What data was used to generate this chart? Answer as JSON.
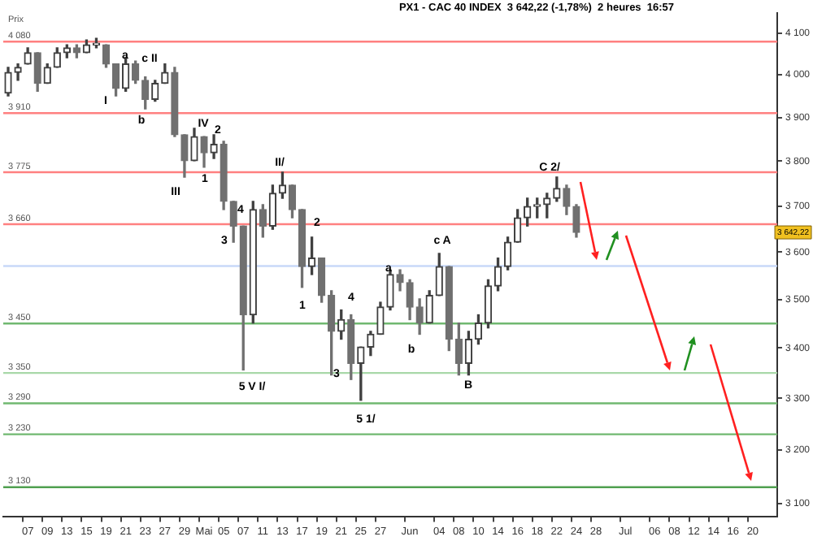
{
  "chart_data": {
    "type": "candlestick",
    "title": "PX1 - CAC 40 INDEX  3 642,22 (-1,78%)  2 heures  16:57",
    "ylabel": "Prix",
    "colors": [
      "#404040",
      "#404040",
      "#404040",
      "#707070",
      "#404040",
      "#404040",
      "#404040",
      "#707070",
      "#404040",
      "#404040",
      "#707070",
      "#707070",
      "#404040",
      "#707070",
      "#707070",
      "#404040",
      "#404040",
      "#707070",
      "#707070",
      "#404040",
      "#707070",
      "#404040",
      "#707070",
      "#707070",
      "#707070",
      "#404040",
      "#707070",
      "#404040",
      "#404040",
      "#707070",
      "#707070",
      "#404040",
      "#707070",
      "#707070",
      "#404040",
      "#707070",
      "#404040",
      "#404040",
      "#404040",
      "#404040",
      "#707070",
      "#707070",
      "#707070",
      "#404040",
      "#404040",
      "#707070",
      "#707070",
      "#404040",
      "#404040",
      "#404040",
      "#404040",
      "#404040",
      "#404040",
      "#404040",
      "#404040",
      "#404040",
      "#404040",
      "#707070",
      "#707070",
      null,
      null,
      null,
      null,
      null,
      null,
      null,
      null,
      null,
      null,
      null,
      null,
      null,
      null,
      null,
      null,
      null,
      null,
      null,
      null
    ],
    "log": "y",
    "grid": false,
    "legend": false,
    "categories": [
      null,
      null,
      "07",
      null,
      "09",
      null,
      "13",
      null,
      "15",
      null,
      "19",
      null,
      "21",
      null,
      "23",
      null,
      "27",
      null,
      "29",
      null,
      "Mai",
      null,
      "05",
      null,
      "07",
      null,
      "11",
      null,
      "13",
      null,
      "17",
      null,
      "19",
      null,
      "21",
      null,
      "25",
      null,
      "27",
      null,
      null,
      "Jun",
      null,
      null,
      "04",
      null,
      "08",
      null,
      "10",
      null,
      "14",
      null,
      "16",
      null,
      "18",
      null,
      "22",
      null,
      "24",
      null,
      "28",
      null,
      null,
      "Jul",
      null,
      null,
      "06",
      null,
      "08",
      null,
      "12",
      null,
      "14",
      null,
      "16",
      null,
      "20",
      null,
      null
    ],
    "ohlc": [
      [
        3957,
        4018,
        3950,
        4006
      ],
      [
        4006,
        4026,
        3987,
        4018
      ],
      [
        4026,
        4065,
        4026,
        4053
      ],
      [
        4053,
        4053,
        3961,
        3980
      ],
      [
        3980,
        4026,
        3980,
        4018
      ],
      [
        4018,
        4065,
        4018,
        4053
      ],
      [
        4053,
        4072,
        4041,
        4065
      ],
      [
        4065,
        4072,
        4041,
        4053
      ],
      [
        4053,
        4084,
        4053,
        4072
      ],
      [
        4072,
        4088,
        4065,
        4072
      ],
      [
        4072,
        4072,
        4018,
        4026
      ],
      [
        4026,
        4026,
        3950,
        3968
      ],
      [
        3968,
        4041,
        3961,
        4026
      ],
      [
        4026,
        4033,
        3980,
        3987
      ],
      [
        3987,
        3995,
        3920,
        3942
      ],
      [
        3942,
        3987,
        3938,
        3980
      ],
      [
        3980,
        4026,
        3980,
        4006
      ],
      [
        4006,
        4018,
        3856,
        3860
      ],
      [
        3860,
        3860,
        3764,
        3801
      ],
      [
        3801,
        3875,
        3801,
        3856
      ],
      [
        3856,
        3856,
        3786,
        3819
      ],
      [
        3819,
        3860,
        3806,
        3838
      ],
      [
        3838,
        3845,
        3692,
        3710
      ],
      [
        3710,
        3710,
        3621,
        3656
      ],
      [
        3656,
        3656,
        3356,
        3468
      ],
      [
        3468,
        3710,
        3451,
        3692
      ],
      [
        3692,
        3703,
        3632,
        3656
      ],
      [
        3656,
        3746,
        3649,
        3728
      ],
      [
        3728,
        3775,
        3717,
        3746
      ],
      [
        3746,
        3746,
        3674,
        3692
      ],
      [
        3692,
        3692,
        3525,
        3569
      ],
      [
        3569,
        3632,
        3552,
        3587
      ],
      [
        3587,
        3587,
        3494,
        3508
      ],
      [
        3508,
        3518,
        3346,
        3434
      ],
      [
        3434,
        3478,
        3418,
        3458
      ],
      [
        3458,
        3468,
        3337,
        3369
      ],
      [
        3369,
        3402,
        3296,
        3402
      ],
      [
        3402,
        3434,
        3385,
        3428
      ],
      [
        3428,
        3494,
        3428,
        3484
      ],
      [
        3484,
        3562,
        3478,
        3552
      ],
      [
        3552,
        3562,
        3518,
        3535
      ],
      [
        3535,
        3541,
        3458,
        3484
      ],
      [
        3484,
        3501,
        3428,
        3451
      ],
      [
        3451,
        3518,
        3451,
        3508
      ],
      [
        3508,
        3597,
        3508,
        3569
      ],
      [
        3569,
        3569,
        3395,
        3418
      ],
      [
        3418,
        3451,
        3346,
        3369
      ],
      [
        3369,
        3434,
        3346,
        3418
      ],
      [
        3418,
        3468,
        3408,
        3451
      ],
      [
        3451,
        3541,
        3441,
        3528
      ],
      [
        3528,
        3587,
        3518,
        3569
      ],
      [
        3569,
        3632,
        3562,
        3621
      ],
      [
        3621,
        3692,
        3621,
        3674
      ],
      [
        3674,
        3717,
        3656,
        3699
      ],
      [
        3699,
        3717,
        3674,
        3703
      ],
      [
        3703,
        3728,
        3674,
        3717
      ],
      [
        3717,
        3764,
        3710,
        3739
      ],
      [
        3739,
        3746,
        3681,
        3699
      ],
      [
        3699,
        3703,
        3632,
        3642.22
      ],
      null,
      null,
      null,
      null,
      null,
      null,
      null,
      null,
      null,
      null,
      null,
      null,
      null,
      null,
      null,
      null,
      null,
      null,
      null,
      null
    ],
    "ylim": [
      3075,
      4150
    ],
    "yticks": [
      {
        "value": 4100,
        "label": "4 100"
      },
      {
        "value": 4000,
        "label": "4 000"
      },
      {
        "value": 3900,
        "label": "3 900"
      },
      {
        "value": 3800,
        "label": "3 800"
      },
      {
        "value": 3700,
        "label": "3 700"
      },
      {
        "value": 3600,
        "label": "3 600"
      },
      {
        "value": 3500,
        "label": "3 500"
      },
      {
        "value": 3400,
        "label": "3 400"
      },
      {
        "value": 3300,
        "label": "3 300"
      },
      {
        "value": 3200,
        "label": "3 200"
      },
      {
        "value": 3100,
        "label": "3 100"
      }
    ],
    "ref_lines": [
      {
        "axis": "y",
        "value": 4080,
        "label": "4 080",
        "color": "#ff8080"
      },
      {
        "axis": "y",
        "value": 3910,
        "label": "3 910",
        "color": "#ff8080"
      },
      {
        "axis": "y",
        "value": 3775,
        "label": "3 775",
        "color": "#ff8080"
      },
      {
        "axis": "y",
        "value": 3660,
        "label": "3 660",
        "color": "#ff8080"
      },
      {
        "axis": "y",
        "value": 3570,
        "color": "#c8d8f8"
      },
      {
        "axis": "y",
        "value": 3450,
        "label": "3 450",
        "color": "#70b870"
      },
      {
        "axis": "y",
        "value": 3350,
        "label": "3 350",
        "color": "#a8d8a8"
      },
      {
        "axis": "y",
        "value": 3290,
        "label": "3 290",
        "color": "#70b870"
      },
      {
        "axis": "y",
        "value": 3230,
        "label": "3 230",
        "color": "#70b870"
      },
      {
        "axis": "y",
        "value": 3130,
        "label": "3 130",
        "color": "#50a050"
      }
    ],
    "annotations": [
      "I",
      "a",
      "b",
      "c II",
      "III",
      "IV",
      "1",
      "2",
      "3",
      "4",
      "5 V I/",
      "II/",
      "1",
      "2",
      "3",
      "4",
      "5 1/",
      "a",
      "b",
      "c A",
      "B",
      "C 2/",
      "3 642,22"
    ]
  }
}
